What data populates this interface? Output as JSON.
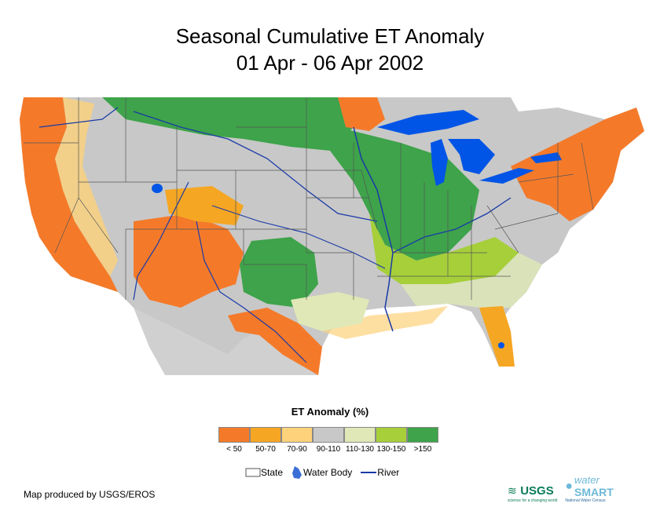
{
  "title": {
    "line1": "Seasonal Cumulative ET Anomaly",
    "line2": "01 Apr - 06 Apr 2002"
  },
  "legend": {
    "title": "ET Anomaly (%)",
    "classes": [
      {
        "label": "< 50",
        "color": "#f47a2a"
      },
      {
        "label": "50-70",
        "color": "#f5a623"
      },
      {
        "label": "70-90",
        "color": "#fdd27a"
      },
      {
        "label": "90-110",
        "color": "#c8c8c8"
      },
      {
        "label": "110-130",
        "color": "#dfe8b6"
      },
      {
        "label": "130-150",
        "color": "#a6cf3a"
      },
      {
        "label": ">150",
        "color": "#3ea34a"
      }
    ],
    "keys": {
      "state": "State",
      "water_body": "Water Body",
      "river": "River"
    }
  },
  "colors": {
    "water": "#0055e6",
    "river": "#1a3aa8",
    "state_border": "#555555"
  },
  "footer": {
    "credit": "Map produced by USGS/EROS"
  },
  "logos": {
    "usgs": "USGS",
    "usgs_tagline": "science for a changing world",
    "watersmart_top": "water",
    "watersmart_main": "SMART",
    "watersmart_tagline": "National Water Census"
  }
}
